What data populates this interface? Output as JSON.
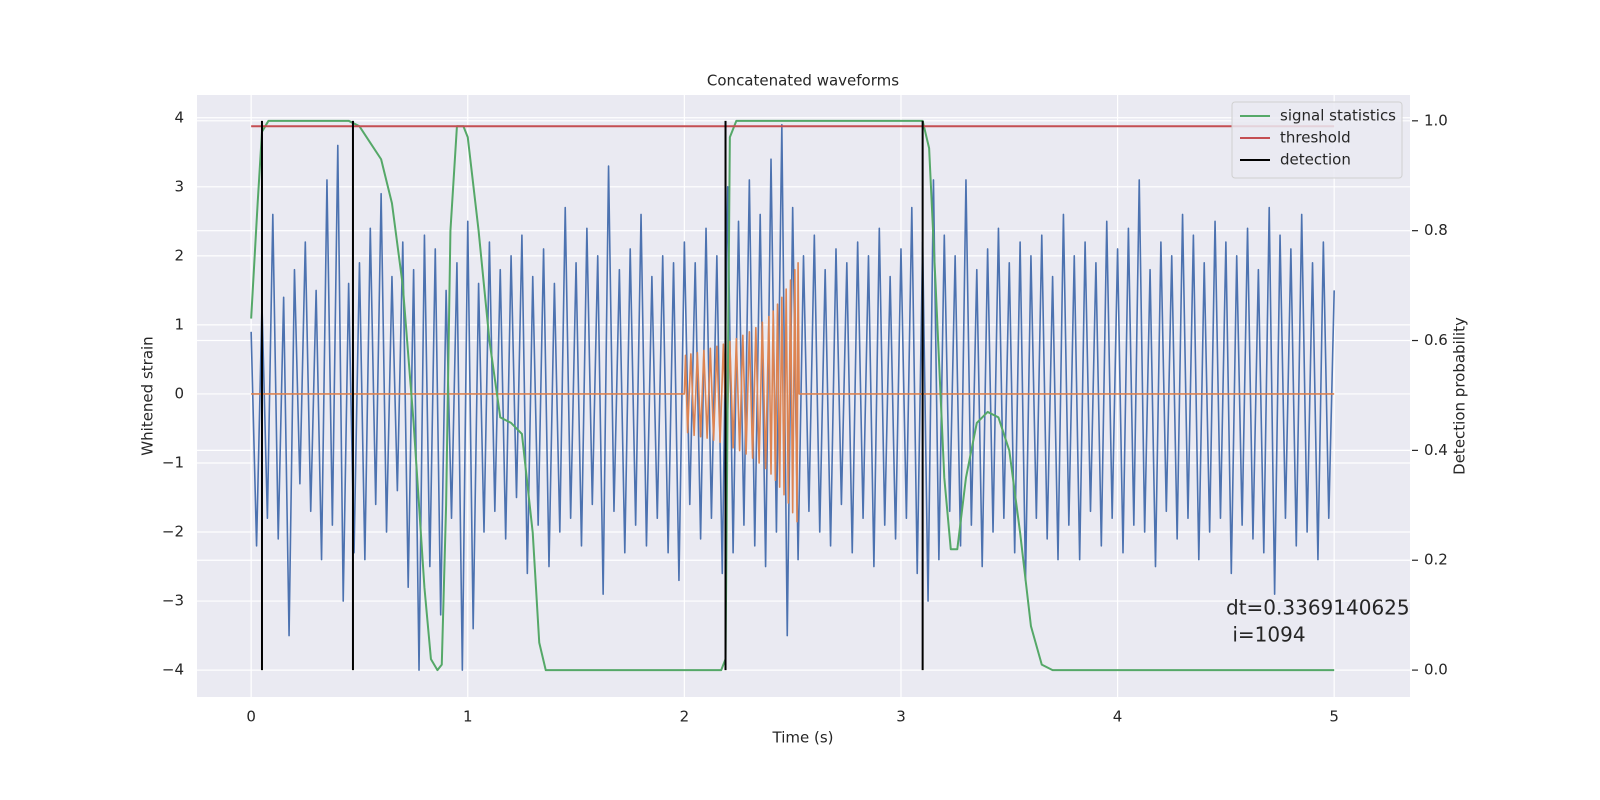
{
  "chart_data": {
    "type": "line",
    "title": "Concatenated waveforms",
    "xlabel": "Time (s)",
    "ylabel": "Whitened strain",
    "y2label": "Detection probability",
    "annotation": [
      "dt=0.3369140625",
      " i=1094"
    ],
    "xlim": [
      -0.25,
      5.35
    ],
    "xticks": [
      0,
      1,
      2,
      3,
      4,
      5
    ],
    "ylim": [
      -4.39,
      4.33
    ],
    "yticks": [
      {
        "value": -4,
        "label": "−4"
      },
      {
        "value": -3,
        "label": "−3"
      },
      {
        "value": -2,
        "label": "−2"
      },
      {
        "value": -1,
        "label": "−1"
      },
      0,
      1,
      2,
      3,
      4
    ],
    "y2lim": [
      -0.049,
      1.047
    ],
    "y2ticks": [
      {
        "value": 0,
        "label": "0.0"
      },
      0.2,
      0.4,
      0.6,
      0.8,
      {
        "value": 1,
        "label": "1.0"
      }
    ],
    "grid": true,
    "legend": "upper right",
    "series": [
      {
        "color": "#4c72b0",
        "x": [
          0,
          0.025,
          0.05,
          0.075,
          0.1,
          0.125,
          0.15,
          0.175,
          0.2,
          0.225,
          0.25,
          0.275,
          0.3,
          0.325,
          0.35,
          0.375,
          0.4,
          0.425,
          0.45,
          0.475,
          0.5,
          0.525,
          0.55,
          0.575,
          0.6,
          0.625,
          0.65,
          0.675,
          0.7,
          0.725,
          0.75,
          0.775,
          0.8,
          0.825,
          0.85,
          0.875,
          0.9,
          0.925,
          0.95,
          0.975,
          1,
          1.025,
          1.05,
          1.075,
          1.1,
          1.125,
          1.15,
          1.175,
          1.2,
          1.225,
          1.25,
          1.275,
          1.3,
          1.325,
          1.35,
          1.375,
          1.4,
          1.425,
          1.45,
          1.475,
          1.5,
          1.525,
          1.55,
          1.575,
          1.6,
          1.625,
          1.65,
          1.675,
          1.7,
          1.725,
          1.75,
          1.775,
          1.8,
          1.825,
          1.85,
          1.875,
          1.9,
          1.925,
          1.95,
          1.975,
          2,
          2.025,
          2.05,
          2.075,
          2.1,
          2.125,
          2.15,
          2.175,
          2.2,
          2.225,
          2.25,
          2.275,
          2.3,
          2.325,
          2.35,
          2.375,
          2.4,
          2.425,
          2.45,
          2.475,
          2.5,
          2.525,
          2.55,
          2.575,
          2.6,
          2.625,
          2.65,
          2.675,
          2.7,
          2.725,
          2.75,
          2.775,
          2.8,
          2.825,
          2.85,
          2.875,
          2.9,
          2.925,
          2.95,
          2.975,
          3,
          3.025,
          3.05,
          3.075,
          3.1,
          3.125,
          3.15,
          3.175,
          3.2,
          3.225,
          3.25,
          3.275,
          3.3,
          3.325,
          3.35,
          3.375,
          3.4,
          3.425,
          3.45,
          3.475,
          3.5,
          3.525,
          3.55,
          3.575,
          3.6,
          3.625,
          3.65,
          3.675,
          3.7,
          3.725,
          3.75,
          3.775,
          3.8,
          3.825,
          3.85,
          3.875,
          3.9,
          3.925,
          3.95,
          3.975,
          4,
          4.025,
          4.05,
          4.075,
          4.1,
          4.125,
          4.15,
          4.175,
          4.2,
          4.225,
          4.25,
          4.275,
          4.3,
          4.325,
          4.35,
          4.375,
          4.4,
          4.425,
          4.45,
          4.475,
          4.5,
          4.525,
          4.55,
          4.575,
          4.6,
          4.625,
          4.65,
          4.675,
          4.7,
          4.725,
          4.75,
          4.775,
          4.8,
          4.825,
          4.85,
          4.875,
          4.9,
          4.925,
          4.95,
          4.975,
          5
        ],
        "values": [
          0.9,
          -2.2,
          1.3,
          -1.8,
          2.6,
          -2.1,
          1.4,
          -3.5,
          1.8,
          -1.3,
          2.2,
          -1.7,
          1.5,
          -2.4,
          3.1,
          -1.9,
          3.6,
          -3.0,
          1.6,
          -2.3,
          1.9,
          -2.4,
          2.4,
          -1.6,
          2.9,
          -2.0,
          1.7,
          -1.4,
          2.2,
          -2.8,
          1.8,
          -4.0,
          2.3,
          -2.5,
          2.1,
          -3.2,
          1.5,
          -1.8,
          1.9,
          -4.0,
          2.5,
          -3.4,
          1.6,
          -2.0,
          2.2,
          -1.7,
          1.8,
          -2.1,
          2.0,
          -1.5,
          2.3,
          -2.6,
          1.7,
          -1.9,
          2.1,
          -2.5,
          1.6,
          -2.0,
          2.7,
          -1.8,
          1.9,
          -2.2,
          2.4,
          -1.6,
          2.0,
          -2.9,
          3.3,
          -1.7,
          1.8,
          -2.3,
          2.1,
          -1.9,
          2.6,
          -2.2,
          1.7,
          -1.8,
          2.0,
          -2.3,
          1.9,
          -2.7,
          2.2,
          -1.6,
          1.9,
          -2.1,
          2.4,
          -1.8,
          2.0,
          -2.6,
          3.0,
          -2.3,
          2.5,
          -1.9,
          3.1,
          -2.2,
          2.6,
          -2.5,
          3.4,
          -2.0,
          3.9,
          -3.5,
          2.7,
          -2.4,
          2.0,
          -1.7,
          2.3,
          -2.0,
          1.8,
          -2.2,
          2.1,
          -1.6,
          1.9,
          -2.3,
          2.2,
          -1.8,
          2.0,
          -2.5,
          2.4,
          -1.9,
          1.7,
          -2.1,
          2.1,
          -1.8,
          2.7,
          -2.6,
          2.2,
          -3.0,
          3.1,
          -2.4,
          2.3,
          -1.7,
          2.0,
          -2.2,
          3.1,
          -1.9,
          1.8,
          -2.5,
          2.1,
          -2.0,
          2.4,
          -1.8,
          1.9,
          -2.3,
          2.2,
          -2.7,
          2.0,
          -1.8,
          2.3,
          -2.1,
          1.7,
          -2.4,
          2.6,
          -1.9,
          2.0,
          -2.4,
          2.2,
          -1.7,
          1.9,
          -2.2,
          2.5,
          -1.8,
          2.1,
          -2.3,
          2.4,
          -1.9,
          3.1,
          -2.0,
          1.8,
          -2.5,
          2.2,
          -1.7,
          2.0,
          -2.1,
          2.6,
          -1.8,
          2.3,
          -2.4,
          1.9,
          -2.0,
          2.5,
          -1.8,
          2.2,
          -2.6,
          2.0,
          -1.9,
          2.4,
          -2.1,
          1.8,
          -2.3,
          2.7,
          -2.9,
          2.3,
          -1.8,
          2.1,
          -2.2,
          2.6,
          -2.0,
          1.9,
          -2.4,
          2.2,
          -1.8,
          1.5
        ]
      },
      {
        "color": "#dd8452",
        "x": [
          0,
          2,
          2.005,
          2.015,
          2.03,
          2.045,
          2.06,
          2.075,
          2.09,
          2.105,
          2.12,
          2.135,
          2.15,
          2.165,
          2.18,
          2.195,
          2.21,
          2.225,
          2.24,
          2.255,
          2.27,
          2.285,
          2.3,
          2.315,
          2.33,
          2.345,
          2.36,
          2.375,
          2.39,
          2.4,
          2.41,
          2.42,
          2.43,
          2.44,
          2.45,
          2.46,
          2.47,
          2.48,
          2.49,
          2.5,
          2.51,
          2.52,
          2.525,
          2.53,
          5
        ],
        "values": [
          0,
          0,
          0.56,
          -0.56,
          0.58,
          -0.6,
          0.6,
          -0.62,
          0.63,
          -0.64,
          0.66,
          -0.67,
          0.69,
          -0.7,
          0.72,
          -0.74,
          0.76,
          -0.78,
          0.8,
          -0.82,
          0.85,
          -0.87,
          0.9,
          -0.93,
          0.96,
          -1.0,
          1.04,
          -1.08,
          1.12,
          -1.16,
          1.2,
          -1.25,
          1.3,
          -1.35,
          1.4,
          -1.46,
          1.52,
          -1.58,
          1.65,
          -1.72,
          1.8,
          -1.85,
          1.9,
          0,
          0
        ]
      },
      {
        "name": "signal statistics",
        "color": "#55a868",
        "axis": "y2",
        "x": [
          0,
          0.03,
          0.05,
          0.08,
          0.45,
          0.5,
          0.55,
          0.6,
          0.65,
          0.7,
          0.75,
          0.8,
          0.83,
          0.86,
          0.88,
          0.9,
          0.92,
          0.95,
          0.98,
          1.0,
          1.05,
          1.1,
          1.15,
          1.2,
          1.25,
          1.3,
          1.33,
          1.36,
          2.17,
          2.19,
          2.21,
          2.24,
          3.1,
          3.13,
          3.16,
          3.2,
          3.23,
          3.26,
          3.3,
          3.35,
          3.4,
          3.45,
          3.5,
          3.55,
          3.6,
          3.65,
          3.7,
          5.0
        ],
        "values": [
          0.64,
          0.85,
          0.98,
          1.0,
          1.0,
          0.99,
          0.96,
          0.93,
          0.85,
          0.7,
          0.45,
          0.15,
          0.02,
          0.0,
          0.01,
          0.3,
          0.8,
          0.99,
          0.99,
          0.97,
          0.8,
          0.6,
          0.46,
          0.45,
          0.43,
          0.25,
          0.05,
          0.0,
          0.0,
          0.02,
          0.97,
          1.0,
          1.0,
          0.95,
          0.7,
          0.35,
          0.22,
          0.22,
          0.35,
          0.45,
          0.47,
          0.46,
          0.4,
          0.25,
          0.08,
          0.01,
          0.0,
          0.0
        ]
      },
      {
        "name": "threshold",
        "color": "#c44e52",
        "axis": "y2",
        "x": [
          0,
          5
        ],
        "values": [
          0.99,
          0.99
        ]
      },
      {
        "name": "detection",
        "color": "#000000",
        "axis": "y2",
        "x": [
          0.05,
          0.47,
          2.19,
          3.1
        ]
      }
    ]
  }
}
